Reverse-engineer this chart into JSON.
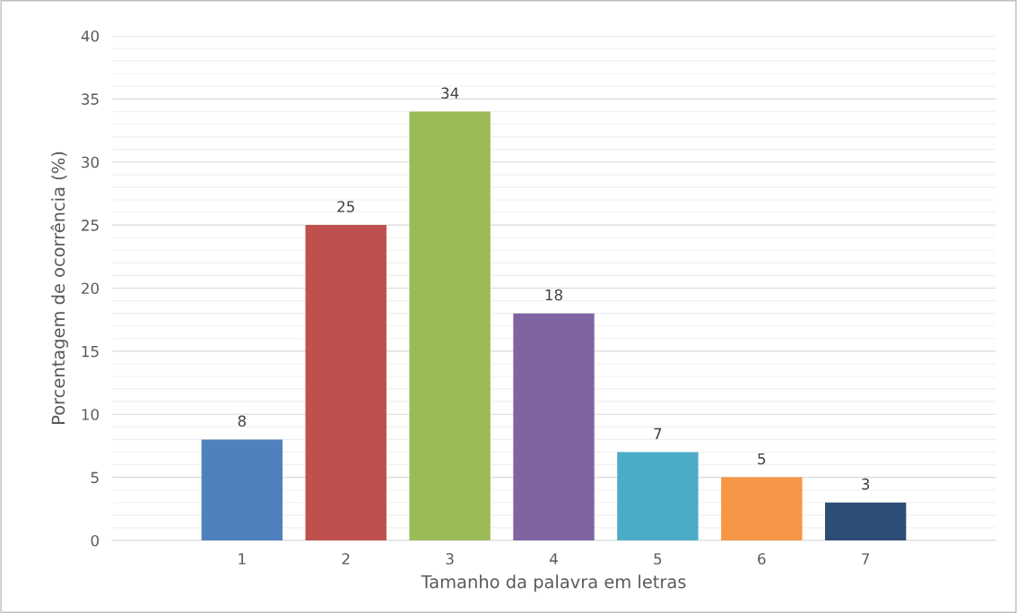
{
  "chart_data": {
    "type": "bar",
    "xlabel": "Tamanho da palavra em letras",
    "ylabel": "Porcentagem de ocorrência (%)",
    "categories": [
      "1",
      "2",
      "3",
      "4",
      "5",
      "6",
      "7"
    ],
    "values": [
      8,
      25,
      34,
      18,
      7,
      5,
      3
    ],
    "colors": [
      "#4f81bd",
      "#c0504d",
      "#9bbb59",
      "#8064a2",
      "#4bacc6",
      "#f79646",
      "#2c4d75"
    ],
    "ylim": [
      0,
      40
    ],
    "yticks": [
      0,
      5,
      10,
      15,
      20,
      25,
      30,
      35,
      40
    ],
    "grid": "y",
    "data_labels": true
  }
}
